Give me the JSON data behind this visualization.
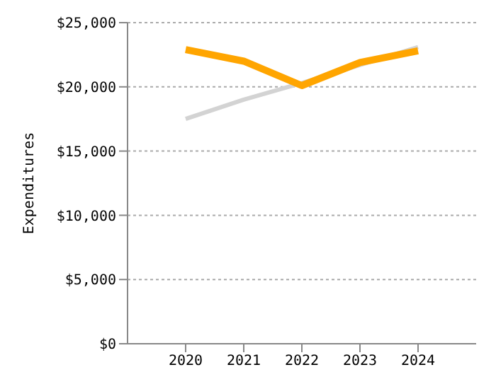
{
  "chart_data": {
    "type": "line",
    "ylabel": "Expenditures",
    "x": [
      2020,
      2021,
      2022,
      2023,
      2024
    ],
    "series": [
      {
        "color": "#d3d3d3",
        "values": [
          17500,
          19000,
          20300,
          21700,
          23100
        ]
      },
      {
        "color": "#ffa500",
        "values": [
          22900,
          22000,
          20100,
          21900,
          22800
        ]
      }
    ],
    "xlim": [
      2019,
      2025
    ],
    "xticks": [
      2020,
      2021,
      2022,
      2023,
      2024
    ],
    "ylim": [
      0,
      25000
    ],
    "yticks": [
      {
        "value": 0,
        "label": "$0"
      },
      {
        "value": 5000,
        "label": "$5,000"
      },
      {
        "value": 10000,
        "label": "$10,000"
      },
      {
        "value": 15000,
        "label": "$15,000"
      },
      {
        "value": 20000,
        "label": "$20,000"
      },
      {
        "value": 25000,
        "label": "$25,000"
      }
    ],
    "grid": "y",
    "marker": "none",
    "line_style": "solid"
  }
}
